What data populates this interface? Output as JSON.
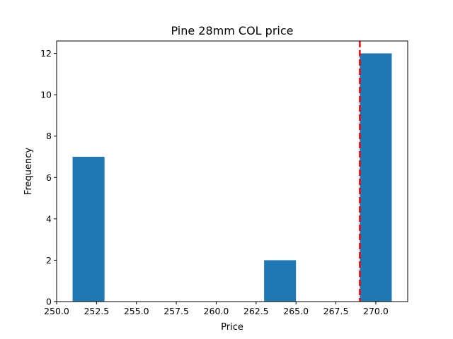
{
  "chart_data": {
    "type": "bar",
    "title": "Pine 28mm COL price",
    "xlabel": "Price",
    "ylabel": "Frequency",
    "xlim": [
      250.0,
      272.0
    ],
    "ylim": [
      0,
      12.6
    ],
    "grid": false,
    "bins": [
      {
        "start": 251.0,
        "end": 253.0,
        "value": 7
      },
      {
        "start": 263.0,
        "end": 265.0,
        "value": 2
      },
      {
        "start": 269.0,
        "end": 271.0,
        "value": 12
      }
    ],
    "x_ticks": [
      250.0,
      252.5,
      255.0,
      257.5,
      260.0,
      262.5,
      265.0,
      267.5,
      270.0
    ],
    "x_tick_labels": [
      "250.0",
      "252.5",
      "255.0",
      "257.5",
      "260.0",
      "262.5",
      "265.0",
      "267.5",
      "270.0"
    ],
    "y_ticks": [
      0,
      2,
      4,
      6,
      8,
      10,
      12
    ],
    "y_tick_labels": [
      "0",
      "2",
      "4",
      "6",
      "8",
      "10",
      "12"
    ],
    "reference_line": {
      "x": 269.0,
      "color": "#ff0000",
      "style": "dashed"
    },
    "bar_color": "#1f77b4"
  }
}
